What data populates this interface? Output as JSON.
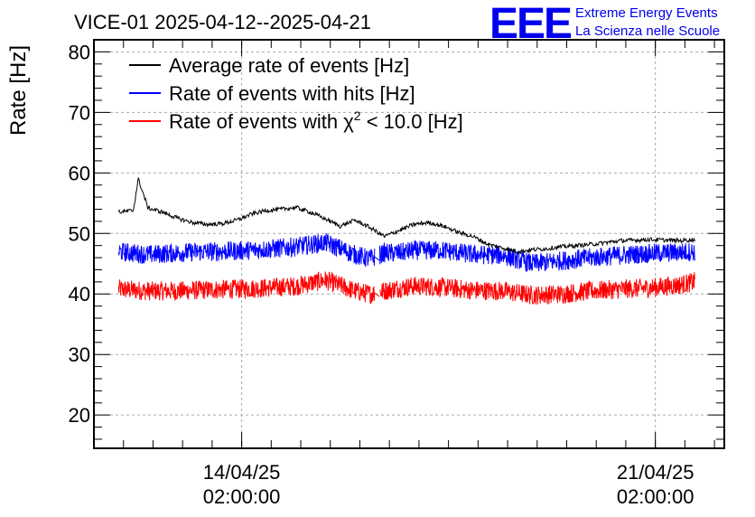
{
  "chart_data": {
    "type": "line",
    "title": "VICE-01 2025-04-12--2025-04-21",
    "ylabel": "Rate [Hz]",
    "xlabel": "",
    "xlim": [
      "2025-04-11 14:00",
      "2025-04-22 06:00"
    ],
    "ylim": [
      14.5,
      82
    ],
    "yticks": [
      20,
      30,
      40,
      50,
      60,
      70,
      80
    ],
    "xticks": [
      {
        "x": "2025-04-14 02:00",
        "line1": "14/04/25",
        "line2": "02:00:00"
      },
      {
        "x": "2025-04-21 02:00",
        "line1": "21/04/25",
        "line2": "02:00:00"
      }
    ],
    "grid": true,
    "legend": "top-left",
    "series": [
      {
        "name": "Average rate of events [Hz]",
        "color": "#000000",
        "x": [
          "2025-04-12 00:00",
          "2025-04-12 06:00",
          "2025-04-12 08:00",
          "2025-04-12 12:00",
          "2025-04-12 18:00",
          "2025-04-13 00:00",
          "2025-04-13 06:00",
          "2025-04-13 12:00",
          "2025-04-13 18:00",
          "2025-04-14 00:00",
          "2025-04-14 06:00",
          "2025-04-14 12:00",
          "2025-04-14 18:00",
          "2025-04-15 00:00",
          "2025-04-15 06:00",
          "2025-04-15 12:00",
          "2025-04-15 18:00",
          "2025-04-16 00:00",
          "2025-04-16 06:00",
          "2025-04-16 12:00",
          "2025-04-16 18:00",
          "2025-04-17 00:00",
          "2025-04-17 06:00",
          "2025-04-17 12:00",
          "2025-04-17 18:00",
          "2025-04-18 00:00",
          "2025-04-18 06:00",
          "2025-04-18 12:00",
          "2025-04-18 18:00",
          "2025-04-19 00:00",
          "2025-04-19 06:00",
          "2025-04-19 12:00",
          "2025-04-19 18:00",
          "2025-04-20 00:00",
          "2025-04-20 06:00",
          "2025-04-20 12:00",
          "2025-04-20 18:00",
          "2025-04-21 00:00",
          "2025-04-21 06:00",
          "2025-04-21 12:00",
          "2025-04-21 18:00"
        ],
        "values": [
          53.5,
          53.8,
          59,
          54.2,
          53.5,
          52.5,
          51.8,
          51.5,
          51.6,
          52.2,
          53.2,
          53.8,
          54.0,
          54.3,
          53.5,
          52.4,
          51.2,
          52.2,
          51.0,
          49.5,
          50.5,
          51.5,
          51.8,
          51.2,
          50.2,
          49.5,
          48.2,
          47.6,
          47.0,
          47.3,
          47.5,
          47.8,
          48.0,
          48.2,
          48.5,
          48.8,
          48.9,
          49.0,
          48.9,
          48.8,
          49.0
        ]
      },
      {
        "name": "Rate of events with hits [Hz]",
        "color": "#0000ff",
        "x": [
          "2025-04-12 00:00",
          "2025-04-12 12:00",
          "2025-04-13 00:00",
          "2025-04-13 12:00",
          "2025-04-14 00:00",
          "2025-04-14 12:00",
          "2025-04-15 00:00",
          "2025-04-15 12:00",
          "2025-04-16 00:00",
          "2025-04-16 06:00",
          "2025-04-16 12:00",
          "2025-04-16 18:00",
          "2025-04-17 00:00",
          "2025-04-17 12:00",
          "2025-04-18 00:00",
          "2025-04-18 12:00",
          "2025-04-19 00:00",
          "2025-04-19 12:00",
          "2025-04-20 00:00",
          "2025-04-20 12:00",
          "2025-04-21 00:00",
          "2025-04-21 12:00",
          "2025-04-21 18:00"
        ],
        "values": [
          47.0,
          46.5,
          46.8,
          47.0,
          47.1,
          47.4,
          47.8,
          48.5,
          46.5,
          45.8,
          46.8,
          46.8,
          47.2,
          47.2,
          46.5,
          46.4,
          45.0,
          45.5,
          46.0,
          46.4,
          46.7,
          46.9,
          47.0
        ]
      },
      {
        "name": "Rate of events with χ² < 10.0 [Hz]",
        "color": "#ff0000",
        "x": [
          "2025-04-12 00:00",
          "2025-04-12 12:00",
          "2025-04-13 00:00",
          "2025-04-13 12:00",
          "2025-04-14 00:00",
          "2025-04-14 12:00",
          "2025-04-15 00:00",
          "2025-04-15 12:00",
          "2025-04-16 00:00",
          "2025-04-16 06:00",
          "2025-04-16 12:00",
          "2025-04-16 18:00",
          "2025-04-17 00:00",
          "2025-04-17 12:00",
          "2025-04-18 00:00",
          "2025-04-18 12:00",
          "2025-04-19 00:00",
          "2025-04-19 12:00",
          "2025-04-20 00:00",
          "2025-04-20 12:00",
          "2025-04-21 00:00",
          "2025-04-21 12:00",
          "2025-04-21 18:00"
        ],
        "values": [
          40.8,
          40.5,
          40.5,
          40.7,
          40.8,
          41.0,
          41.3,
          42.3,
          40.5,
          40.0,
          40.5,
          41.0,
          41.3,
          41.1,
          40.6,
          40.5,
          39.8,
          40.0,
          40.5,
          40.8,
          41.0,
          41.5,
          42.0
        ]
      }
    ]
  },
  "logo": {
    "mark": "EEE",
    "line1": "Extreme Energy Events",
    "line2": "La Scienza nelle Scuole"
  },
  "legend_text": {
    "chi_prefix": "Rate of events with ",
    "chi_symbol": "χ",
    "chi_sup": "2",
    "chi_suffix": " < 10.0 [Hz]"
  }
}
